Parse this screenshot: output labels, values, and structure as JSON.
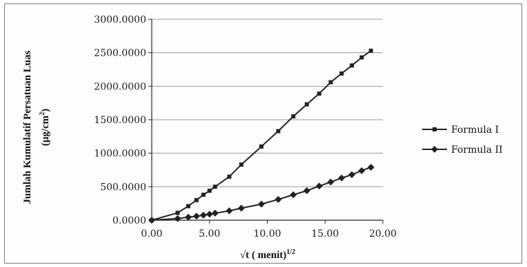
{
  "chart_data": {
    "type": "line",
    "title": "",
    "xlabel": "√t ( menit)",
    "xlabel_sup": "1/2",
    "ylabel_line1": "Jumlah Kumulatif Persatuan Luas",
    "ylabel_line2": "(μg/cm",
    "ylabel_sup": "2",
    "ylabel_close": ")",
    "xlim": [
      0,
      20
    ],
    "ylim": [
      0,
      3000
    ],
    "x_ticks": [
      0,
      5,
      10,
      15,
      20
    ],
    "x_tick_labels": [
      "0.00",
      "5.00",
      "10.00",
      "15.00",
      "20.00"
    ],
    "y_ticks": [
      0,
      500,
      1000,
      1500,
      2000,
      2500,
      3000
    ],
    "y_tick_labels": [
      "0.0000",
      "500.0000",
      "1000.0000",
      "1500.0000",
      "2000.0000",
      "2500.0000",
      "3000.0000"
    ],
    "grid": "horizontal",
    "legend_position": "right",
    "series": [
      {
        "name": "Formula I",
        "marker": "square",
        "x": [
          0,
          2.24,
          3.16,
          3.87,
          4.47,
          5.0,
          5.48,
          6.71,
          7.75,
          9.49,
          10.95,
          12.25,
          13.42,
          14.49,
          15.49,
          16.43,
          17.32,
          18.17,
          18.97
        ],
        "y": [
          0,
          110,
          210,
          300,
          380,
          440,
          500,
          650,
          830,
          1100,
          1330,
          1550,
          1730,
          1890,
          2060,
          2190,
          2310,
          2430,
          2530
        ]
      },
      {
        "name": "Formula II",
        "marker": "diamond",
        "x": [
          0,
          2.24,
          3.16,
          3.87,
          4.47,
          5.0,
          5.48,
          6.71,
          7.75,
          9.49,
          10.95,
          12.25,
          13.42,
          14.49,
          15.49,
          16.43,
          17.32,
          18.17,
          18.97
        ],
        "y": [
          0,
          25,
          45,
          60,
          75,
          90,
          105,
          140,
          180,
          240,
          310,
          380,
          440,
          510,
          570,
          630,
          680,
          740,
          790
        ]
      }
    ]
  }
}
